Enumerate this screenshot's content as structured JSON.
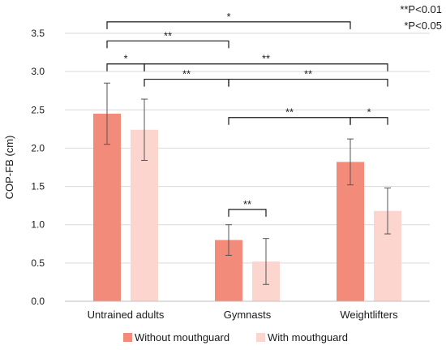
{
  "chart_data": {
    "type": "bar",
    "title": "",
    "xlabel": "",
    "ylabel": "COP-FB (cm)",
    "ylim": [
      0,
      3.5
    ],
    "yticks": [
      "0.0",
      "0.5",
      "1.0",
      "1.5",
      "2.0",
      "2.5",
      "3.0",
      "3.5"
    ],
    "categories": [
      "Untrained adults",
      "Gymnasts",
      "Weightlifters"
    ],
    "series": [
      {
        "name": "Without mouthguard",
        "color": "#f28b7a",
        "values": [
          2.45,
          0.8,
          1.82
        ],
        "error": [
          0.4,
          0.2,
          0.3
        ]
      },
      {
        "name": "With mouthguard",
        "color": "#fdd5cf",
        "values": [
          2.24,
          0.52,
          1.18
        ],
        "error": [
          0.4,
          0.3,
          0.3
        ]
      }
    ],
    "legend_position": "bottom",
    "grid": "horizontal",
    "significance": [
      {
        "from": [
          0,
          0
        ],
        "to": [
          2,
          0
        ],
        "label": "*",
        "level": 3.65
      },
      {
        "from": [
          0,
          0
        ],
        "to": [
          1,
          0
        ],
        "label": "**",
        "level": 3.4
      },
      {
        "from": [
          0,
          0
        ],
        "to": [
          0,
          1
        ],
        "label": "*",
        "level": 3.1
      },
      {
        "from": [
          0,
          1
        ],
        "to": [
          2,
          1
        ],
        "label": "**",
        "level": 3.1
      },
      {
        "from": [
          0,
          1
        ],
        "to": [
          1,
          0
        ],
        "label": "**",
        "level": 2.9
      },
      {
        "from": [
          1,
          0
        ],
        "to": [
          2,
          1
        ],
        "label": "**",
        "level": 2.9
      },
      {
        "from": [
          1,
          0
        ],
        "to": [
          2,
          0
        ],
        "label": "**",
        "level": 2.4
      },
      {
        "from": [
          2,
          0
        ],
        "to": [
          2,
          1
        ],
        "label": "*",
        "level": 2.4
      },
      {
        "from": [
          1,
          0
        ],
        "to": [
          1,
          1
        ],
        "label": "**",
        "level": 1.2
      }
    ],
    "annotations": [
      "**P<0.01",
      "*P<0.05"
    ]
  }
}
